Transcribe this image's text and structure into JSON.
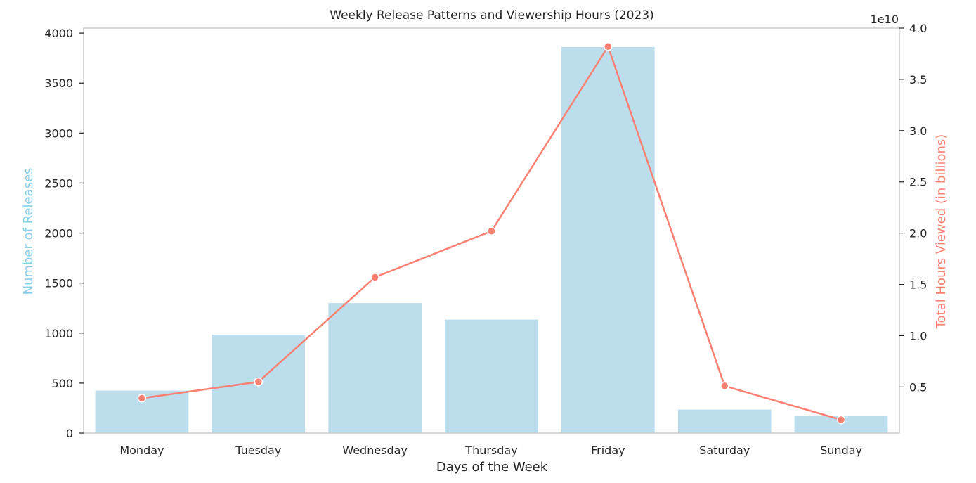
{
  "chart_data": {
    "type": "bar",
    "title": "Weekly Release Patterns and Viewership Hours (2023)",
    "xlabel": "Days of the Week",
    "categories": [
      "Monday",
      "Tuesday",
      "Wednesday",
      "Thursday",
      "Friday",
      "Saturday",
      "Sunday"
    ],
    "left_axis": {
      "label": "Number of Releases",
      "color": "#87ceeb",
      "ylim": [
        0,
        4050
      ],
      "ticks": [
        0,
        500,
        1000,
        1500,
        2000,
        2500,
        3000,
        3500,
        4000
      ],
      "tick_labels": [
        "0",
        "500",
        "1000",
        "1500",
        "2000",
        "2500",
        "3000",
        "3500",
        "4000"
      ]
    },
    "right_axis": {
      "label": "Total Hours Viewed (in billions)",
      "color": "#fa8072",
      "offset_label": "1e10",
      "ylim": [
        0.05,
        4.0
      ],
      "ticks": [
        0.5,
        1.0,
        1.5,
        2.0,
        2.5,
        3.0,
        3.5,
        4.0
      ],
      "tick_labels": [
        "0.5",
        "1.0",
        "1.5",
        "2.0",
        "2.5",
        "3.0",
        "3.5",
        "4.0"
      ]
    },
    "series": [
      {
        "name": "Number of Releases",
        "type": "bar",
        "axis": "left",
        "color": "#bcdeec",
        "values": [
          425,
          985,
          1300,
          1135,
          3860,
          235,
          170
        ]
      },
      {
        "name": "Total Hours Viewed (in billions)",
        "type": "line",
        "axis": "right",
        "color": "#fa8072",
        "values": [
          0.39,
          0.55,
          1.57,
          2.02,
          3.82,
          0.51,
          0.18
        ]
      }
    ],
    "grid": false,
    "legend": "none"
  }
}
